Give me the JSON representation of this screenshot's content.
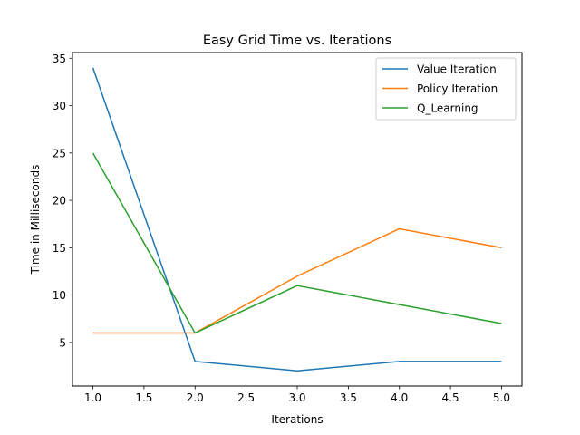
{
  "chart_data": {
    "type": "line",
    "title": "Easy Grid Time vs. Iterations",
    "xlabel": "Iterations",
    "ylabel": "Time in Milliseconds",
    "x": [
      1.0,
      2.0,
      3.0,
      4.0,
      5.0
    ],
    "xlim": [
      0.8,
      5.2
    ],
    "ylim": [
      0.4,
      35.6
    ],
    "x_ticks": [
      "1.0",
      "1.5",
      "2.0",
      "2.5",
      "3.0",
      "3.5",
      "4.0",
      "4.5",
      "5.0"
    ],
    "y_ticks": [
      "5",
      "10",
      "15",
      "20",
      "25",
      "30",
      "35"
    ],
    "grid": false,
    "legend_position": "top-right",
    "series": [
      {
        "name": "Value Iteration",
        "color": "#1f77b4",
        "values": [
          34,
          3,
          2,
          3,
          3
        ]
      },
      {
        "name": "Policy Iteration",
        "color": "#ff7f0e",
        "values": [
          6,
          6,
          12,
          17,
          15
        ]
      },
      {
        "name": "Q_Learning",
        "color": "#2ca02c",
        "values": [
          25,
          6,
          11,
          9,
          7
        ]
      }
    ]
  }
}
